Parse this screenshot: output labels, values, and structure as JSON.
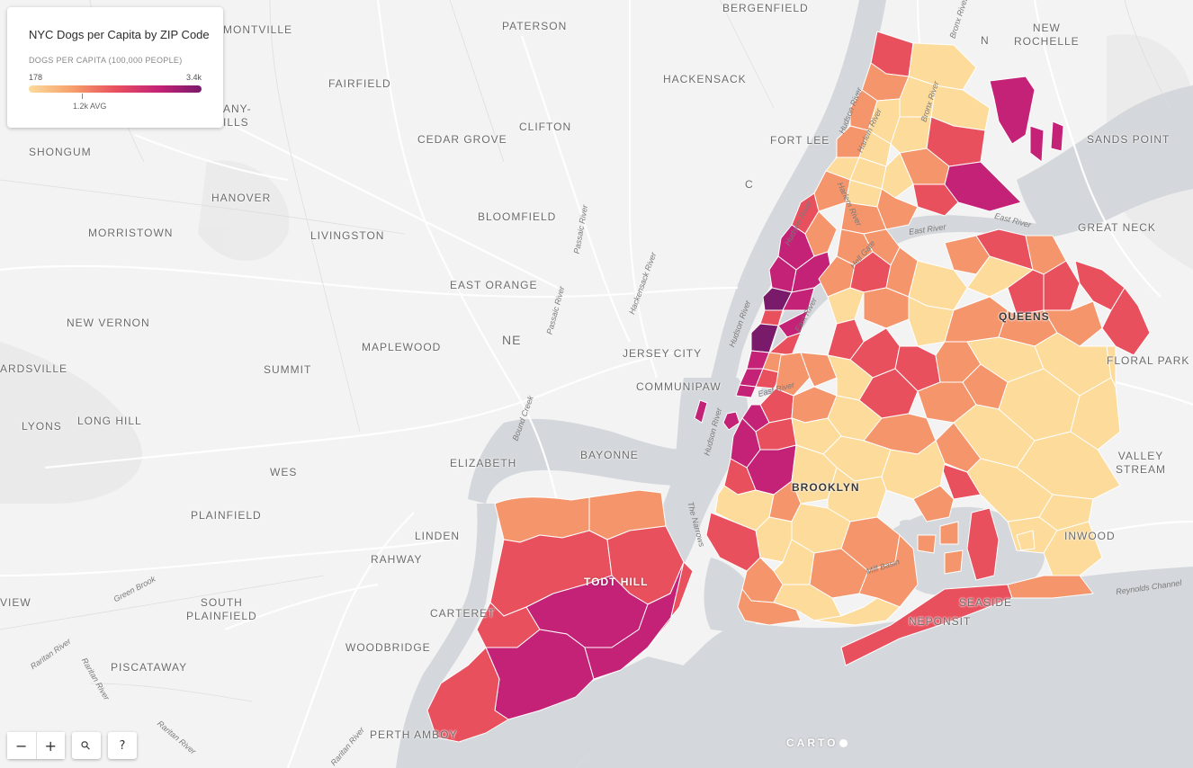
{
  "legend": {
    "title": "NYC Dogs per Capita by ZIP Code",
    "subtitle": "DOGS PER CAPITA (100,000 PEOPLE)",
    "min_label": "178",
    "max_label": "3.4k",
    "avg_label": "1.2k AVG",
    "color_ramp": [
      "#fcdb9b",
      "#f6a06c",
      "#e9505e",
      "#c42277",
      "#7a1a6a"
    ]
  },
  "places": {
    "montville": "MONTVILLE",
    "paterson": "PATERSON",
    "bergenfield": "BERGENFIELD",
    "new_rochelle": "NEW\nROCHELLE",
    "fairfield": "FAIRFIELD",
    "hackensack": "HACKENSACK",
    "any_ills": "ANY-\nILLS",
    "shongum": "SHONGUM",
    "cedar_grove": "CEDAR GROVE",
    "clifton": "CLIFTON",
    "fort_lee": "FORT LEE",
    "sands_point": "SANDS POINT",
    "hanover": "HANOVER",
    "bloomfield": "BLOOMFIELD",
    "morristown": "MORRISTOWN",
    "livingston": "LIVINGSTON",
    "great_neck": "GREAT NECK",
    "east_orange": "EAST ORANGE",
    "queens": "QUEENS",
    "new_vernon": "NEW VERNON",
    "ne": "NE",
    "maplewood": "MAPLEWOOD",
    "jersey_city": "JERSEY CITY",
    "floral_park": "FLORAL PARK",
    "ardsville": "ARDSVILLE",
    "summit": "SUMMIT",
    "communipaw": "COMMUNIPAW",
    "lyons": "LYONS",
    "long_hill": "LONG HILL",
    "bayonne": "BAYONNE",
    "valley_stream": "VALLEY\nSTREAM",
    "wes": "WES",
    "elizabeth": "ELIZABETH",
    "brooklyn": "BROOKLYN",
    "plainfield": "PLAINFIELD",
    "linden": "LINDEN",
    "inwood": "INWOOD",
    "rahway": "RAHWAY",
    "todt_hill": "TODT HILL",
    "view": "VIEW",
    "south_plainfield": "SOUTH\nPLAINFIELD",
    "carteret": "CARTERET",
    "seaside": "SEASIDE",
    "neponsit": "NEPONSIT",
    "woodbridge": "WOODBRIDGE",
    "piscataway": "PISCATAWAY",
    "perth_amboy": "PERTH AMBOY",
    "c": "C",
    "n": "N"
  },
  "water": {
    "hudson_river": "Hudson River",
    "harlem_river": "Harlem River",
    "bronx_river": "Bronx River",
    "east_river": "East River",
    "hell_gate": "Hell Gate",
    "passaic_river": "Passaic River",
    "hackensack_river": "Hackensack River",
    "the_narrows": "The Narrows",
    "mill_basin": "Mill Basin",
    "reynolds_channel": "Reynolds Channel",
    "green_brook": "Green Brook",
    "raritan_river": "Raritan River",
    "bound_creek": "Bound Creek"
  },
  "controls": {
    "zoom_out": "−",
    "zoom_in": "+",
    "search": "⚲",
    "help": "?"
  },
  "attribution": "CARTO"
}
